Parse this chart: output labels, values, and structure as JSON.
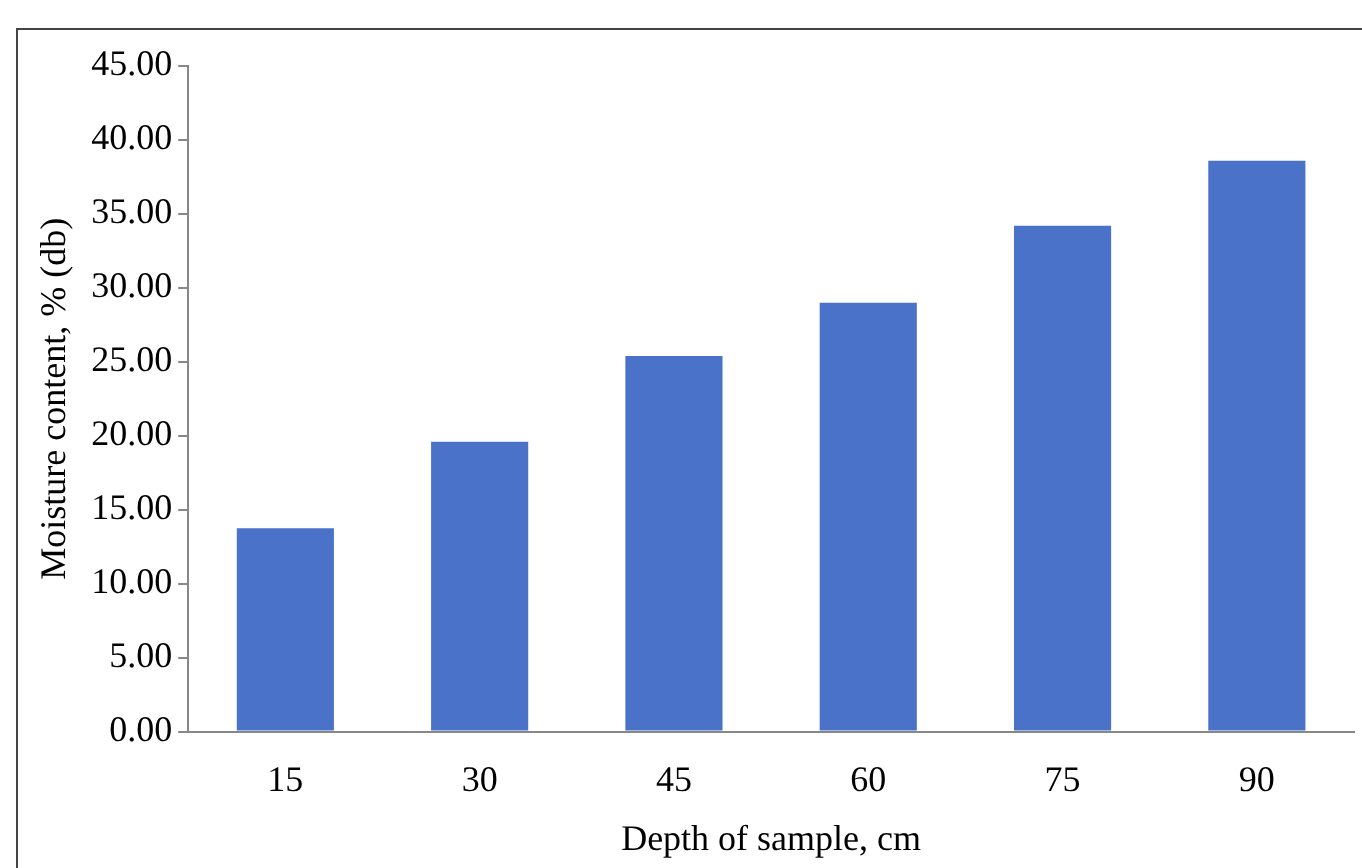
{
  "chart_data": {
    "type": "bar",
    "xlabel": "Depth of sample, cm",
    "ylabel": "Moisture content, % (db)",
    "categories": [
      "15",
      "30",
      "45",
      "60",
      "75",
      "90"
    ],
    "values": [
      13.75,
      19.6,
      25.4,
      29.0,
      34.2,
      38.6
    ],
    "color": "#4a72c8",
    "ylim": [
      0,
      45
    ],
    "yticks": [
      {
        "value": 0,
        "label": "0.00"
      },
      {
        "value": 5,
        "label": "5.00"
      },
      {
        "value": 10,
        "label": "10.00"
      },
      {
        "value": 15,
        "label": "15.00"
      },
      {
        "value": 20,
        "label": "20.00"
      },
      {
        "value": 25,
        "label": "25.00"
      },
      {
        "value": 30,
        "label": "30.00"
      },
      {
        "value": 35,
        "label": "35.00"
      },
      {
        "value": 40,
        "label": "40.00"
      },
      {
        "value": 45,
        "label": "45.00"
      }
    ],
    "grid": false,
    "legend": false
  }
}
